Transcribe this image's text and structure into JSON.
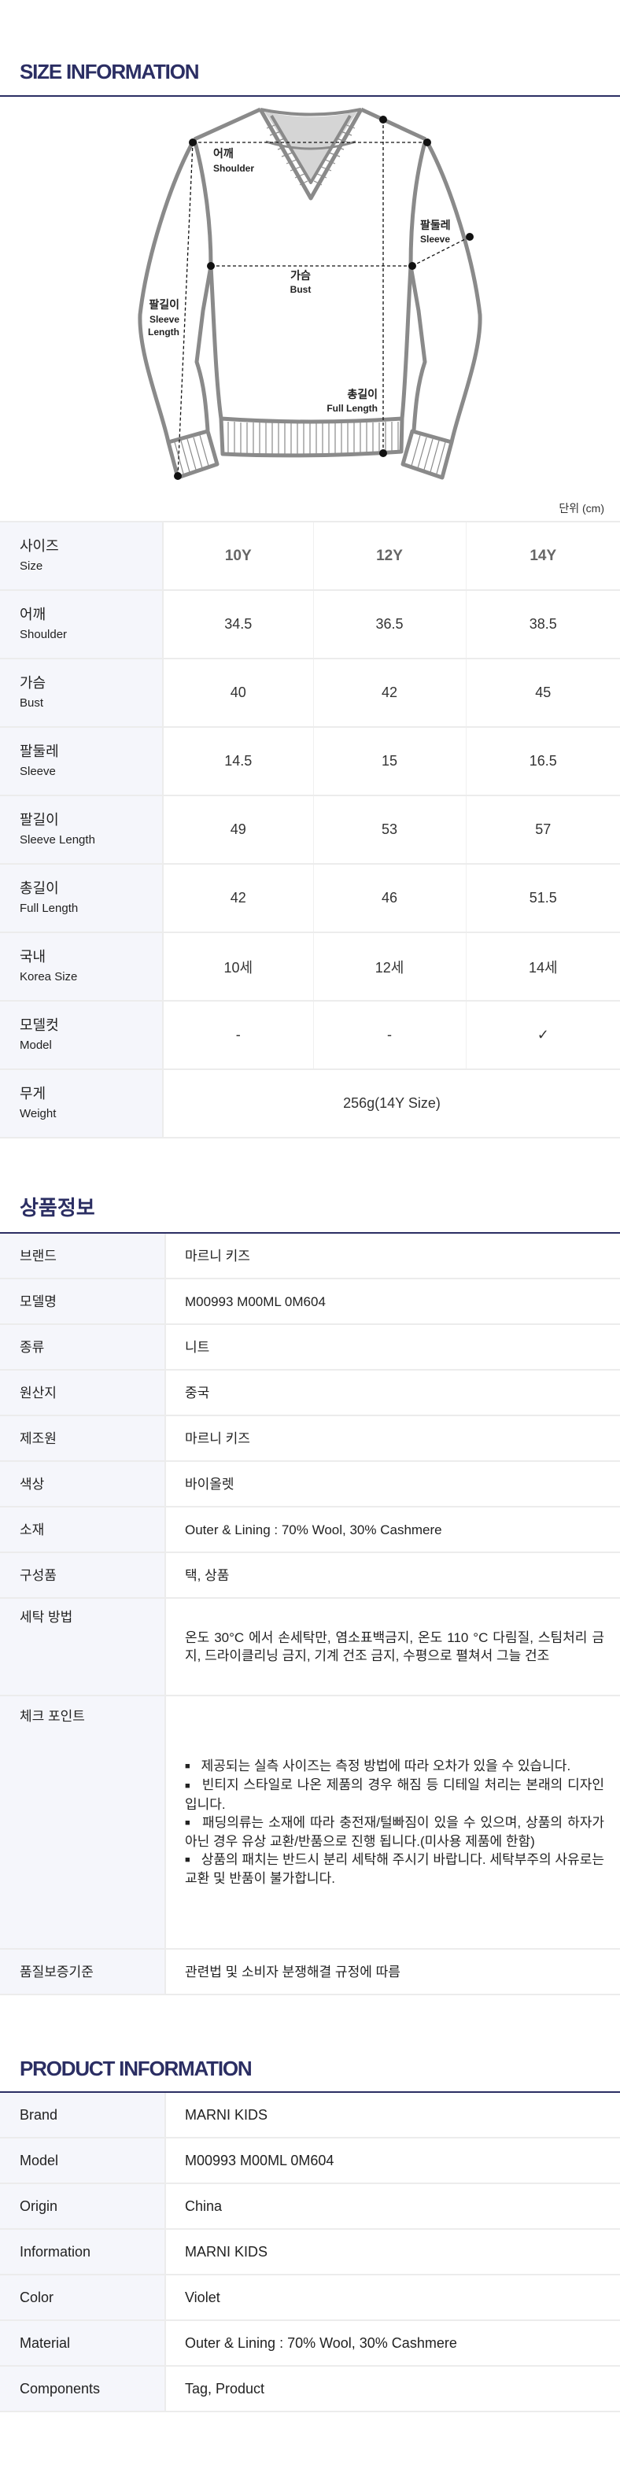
{
  "size_section": {
    "title": "SIZE INFORMATION",
    "unit_label": "단위 (cm)",
    "diagram_labels": {
      "shoulder_ko": "어깨",
      "shoulder_en": "Shoulder",
      "bust_ko": "가슴",
      "bust_en": "Bust",
      "sleeve_ko": "팔둘레",
      "sleeve_en": "Sleeve",
      "sleeve_length_ko": "팔길이",
      "sleeve_length_en1": "Sleeve",
      "sleeve_length_en2": "Length",
      "full_length_ko": "총길이",
      "full_length_en": "Full Length"
    },
    "header": {
      "ko": "사이즈",
      "en": "Size",
      "sizes": [
        "10Y",
        "12Y",
        "14Y"
      ]
    },
    "rows": [
      {
        "ko": "어깨",
        "en": "Shoulder",
        "values": [
          "34.5",
          "36.5",
          "38.5"
        ]
      },
      {
        "ko": "가슴",
        "en": "Bust",
        "values": [
          "40",
          "42",
          "45"
        ]
      },
      {
        "ko": "팔둘레",
        "en": "Sleeve",
        "values": [
          "14.5",
          "15",
          "16.5"
        ]
      },
      {
        "ko": "팔길이",
        "en": "Sleeve Length",
        "values": [
          "49",
          "53",
          "57"
        ]
      },
      {
        "ko": "총길이",
        "en": "Full Length",
        "values": [
          "42",
          "46",
          "51.5"
        ]
      },
      {
        "ko": "국내",
        "en": "Korea Size",
        "values": [
          "10세",
          "12세",
          "14세"
        ]
      },
      {
        "ko": "모델컷",
        "en": "Model",
        "values": [
          "-",
          "-",
          "✓"
        ]
      }
    ],
    "weight": {
      "ko": "무게",
      "en": "Weight",
      "value": "256g(14Y Size)"
    }
  },
  "info_section": {
    "title": "상품정보",
    "rows": [
      {
        "label": "브랜드",
        "value": "마르니 키즈"
      },
      {
        "label": "모델명",
        "value": "M00993 M00ML 0M604"
      },
      {
        "label": "종류",
        "value": "니트"
      },
      {
        "label": "원산지",
        "value": "중국"
      },
      {
        "label": "제조원",
        "value": "마르니 키즈"
      },
      {
        "label": "색상",
        "value": "바이올렛"
      },
      {
        "label": "소재",
        "value": "Outer & Lining : 70% Wool, 30% Cashmere"
      },
      {
        "label": "구성품",
        "value": "택, 상품"
      },
      {
        "label": "세탁 방법",
        "value": "온도 30°C 에서 손세탁만, 염소표백금지, 온도 110 °C 다림질, 스팀처리 금지, 드라이클리닝 금지, 기계 건조 금지, 수평으로 펼쳐서 그늘 건조"
      }
    ],
    "check_point": {
      "label": "체크 포인트",
      "items": [
        "제공되는 실측 사이즈는 측정 방법에 따라 오차가 있을 수 있습니다.",
        "빈티지 스타일로 나온 제품의 경우 해짐 등 디테일 처리는 본래의 디자인입니다.",
        "패딩의류는 소재에 따라 충전재/털빠짐이 있을 수 있으며, 상품의 하자가 아닌 경우 유상 교환/반품으로 진행 됩니다.(미사용 제품에 한함)",
        "상품의 패치는 반드시 분리 세탁해 주시기 바랍니다. 세탁부주의 사유로는 교환 및 반품이 불가합니다."
      ]
    },
    "quality": {
      "label": "품질보증기준",
      "value": "관련법 및 소비자 분쟁해결 규정에 따름"
    }
  },
  "product_section": {
    "title": "PRODUCT INFORMATION",
    "rows": [
      {
        "label": "Brand",
        "value": "MARNI KIDS"
      },
      {
        "label": "Model",
        "value": "M00993 M00ML 0M604"
      },
      {
        "label": "Origin",
        "value": "China"
      },
      {
        "label": "Information",
        "value": "MARNI KIDS"
      },
      {
        "label": "Color",
        "value": "Violet"
      },
      {
        "label": "Material",
        "value": "Outer & Lining : 70% Wool, 30% Cashmere"
      },
      {
        "label": "Components",
        "value": "Tag, Product"
      }
    ]
  },
  "colors": {
    "heading": "#2b2e63",
    "label_bg": "#f5f6fb",
    "outline": "#8a8a8a"
  }
}
